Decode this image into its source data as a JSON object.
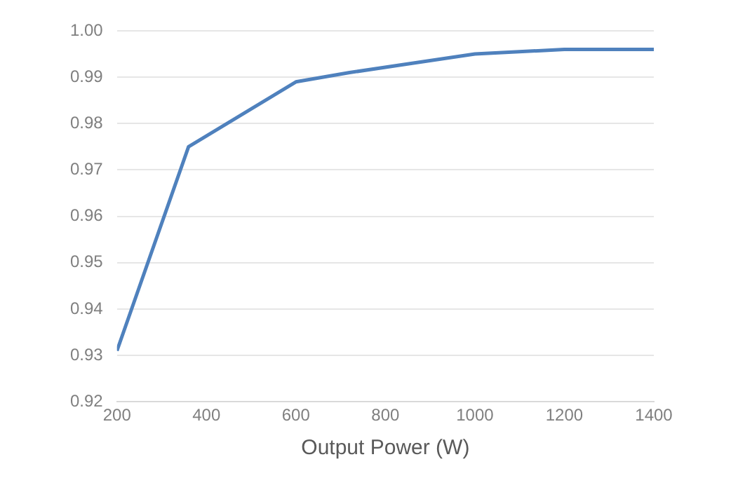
{
  "chart_data": {
    "type": "line",
    "xlabel": "Output Power (W)",
    "x": [
      200,
      360,
      600,
      720,
      860,
      1000,
      1200,
      1400
    ],
    "series": [
      {
        "color": "#4f81bd",
        "values": [
          0.931,
          0.975,
          0.989,
          0.991,
          0.993,
          0.995,
          0.996,
          0.996
        ]
      }
    ],
    "xlim": [
      200,
      1400
    ],
    "xticks": [
      200,
      400,
      600,
      800,
      1000,
      1200,
      1400
    ],
    "ylim": [
      0.92,
      1.0
    ],
    "yticks": [
      {
        "value": 0.92,
        "label": "0.92"
      },
      {
        "value": 0.93,
        "label": "0.93"
      },
      {
        "value": 0.94,
        "label": "0.94"
      },
      {
        "value": 0.95,
        "label": "0.95"
      },
      {
        "value": 0.96,
        "label": "0.96"
      },
      {
        "value": 0.97,
        "label": "0.97"
      },
      {
        "value": 0.98,
        "label": "0.98"
      },
      {
        "value": 0.99,
        "label": "0.99"
      },
      {
        "value": 1.0,
        "label": "1.00"
      }
    ],
    "grid": "y",
    "legend": false,
    "marker": "none",
    "line_style": "solid"
  }
}
